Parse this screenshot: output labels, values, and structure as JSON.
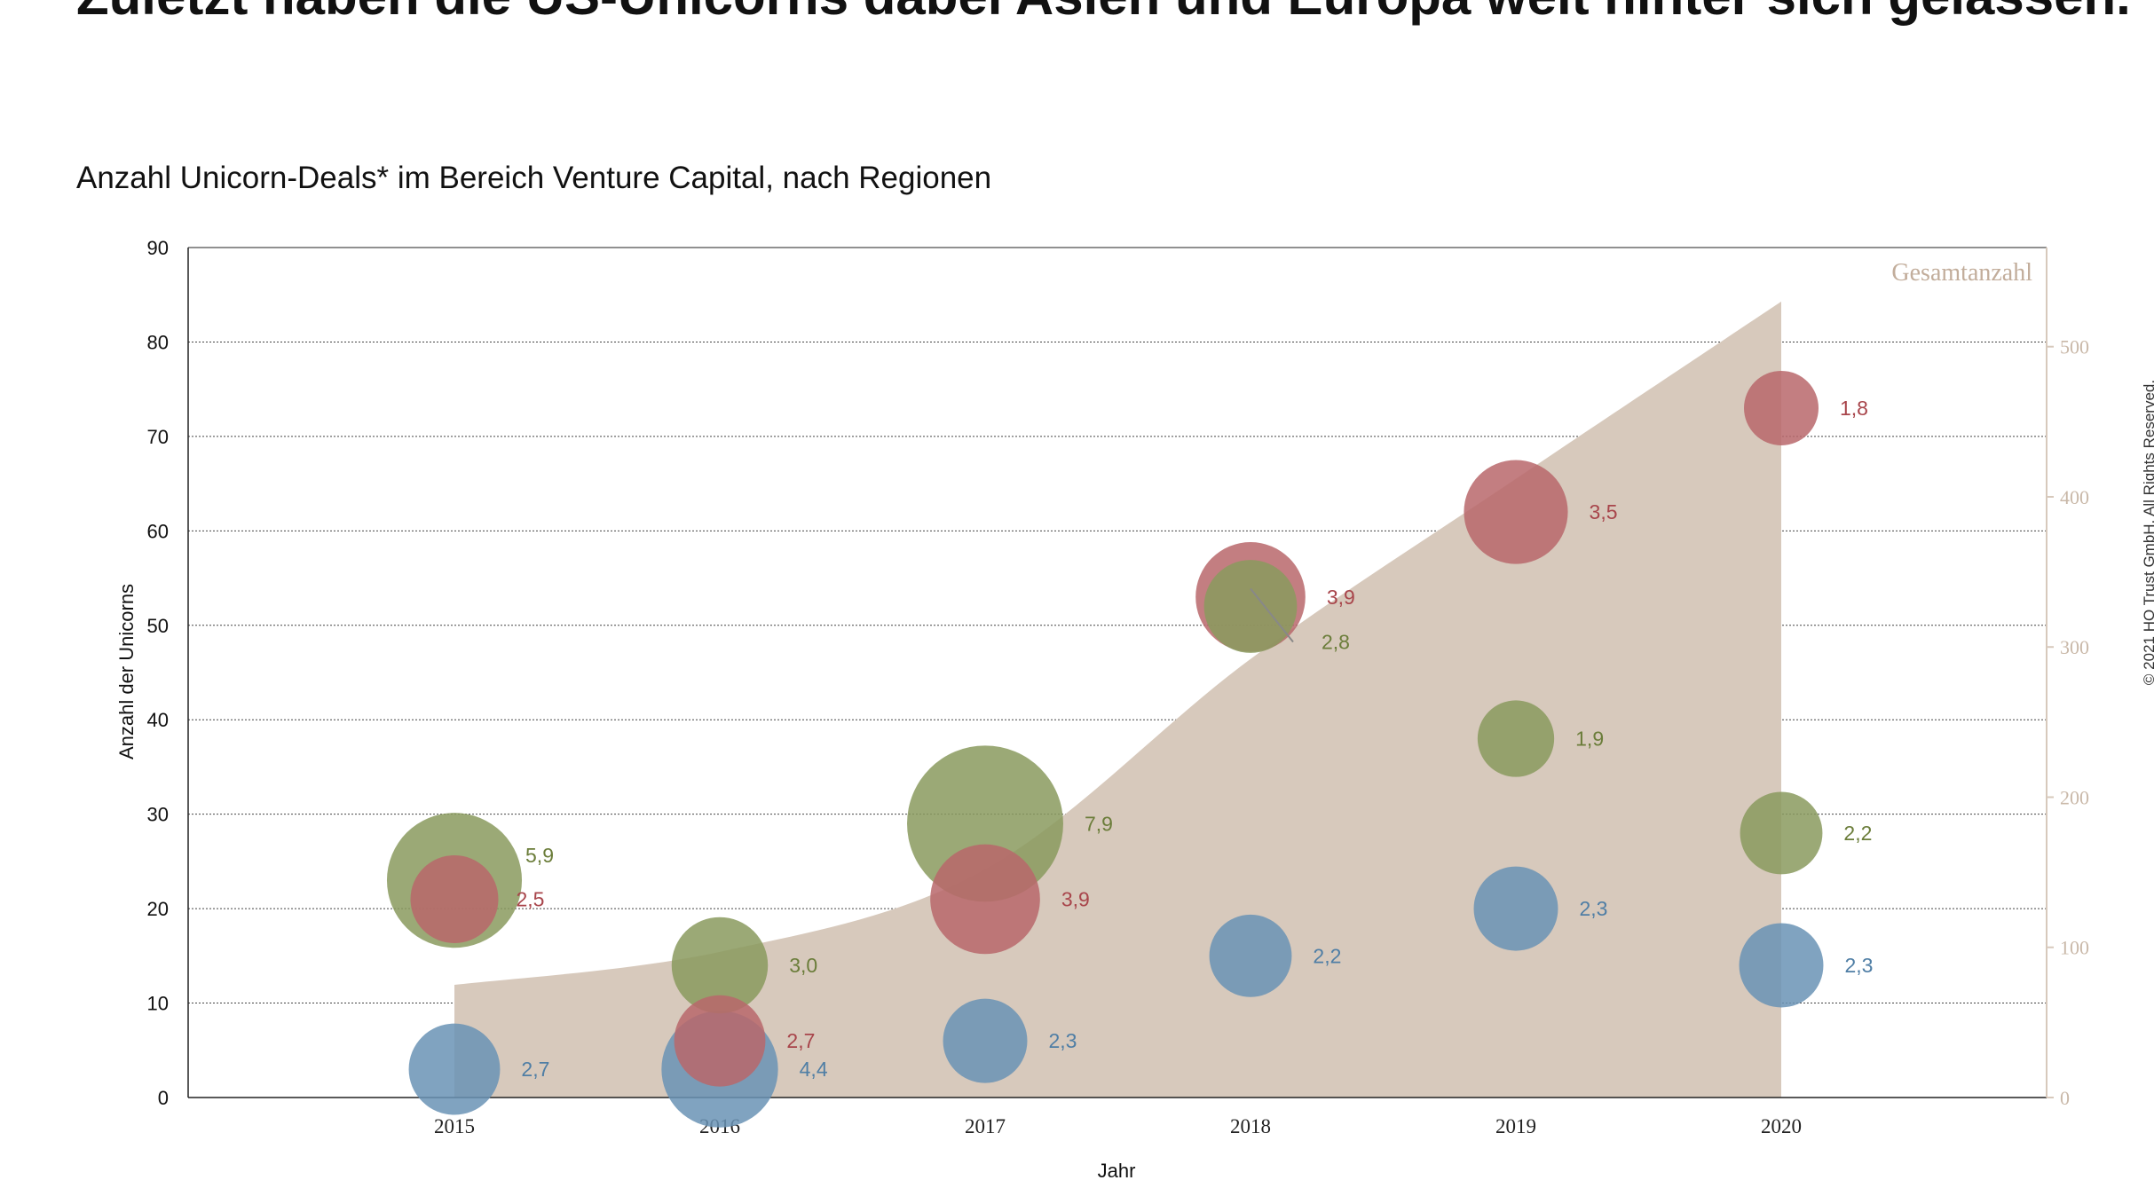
{
  "headline": "Zuletzt haben die US-Unicorns dabei Asien und Europa weit hinter sich gelassen.",
  "copyright": "© 2021 HQ Trust GmbH. All Rights Reserved.",
  "chart_data": {
    "type": "bubble",
    "title": "Anzahl Unicorn-Deals* im Bereich Venture Capital, nach Regionen",
    "xlabel": "Jahr",
    "ylabel": "Anzahl der Unicorns",
    "ylim": [
      0,
      90
    ],
    "yticks": [
      0,
      10,
      20,
      30,
      40,
      50,
      60,
      70,
      80,
      90
    ],
    "y2lim": [
      0,
      566
    ],
    "y2ticks": [
      0,
      100,
      200,
      300,
      400,
      500
    ],
    "categories": [
      "2015",
      "2016",
      "2017",
      "2018",
      "2019",
      "2020"
    ],
    "grid": true,
    "colors": {
      "red": "#b9676b",
      "green": "#8a9a5e",
      "blue": "#6a93b5",
      "area": "#d7c9bc"
    },
    "area": {
      "name": "Gesamtanzahl",
      "values": [
        75,
        97,
        152,
        292,
        412,
        530
      ]
    },
    "series": [
      {
        "color_key": "green",
        "points": [
          {
            "x": "2015",
            "y": 23,
            "size": 5.9,
            "label": "5,9"
          },
          {
            "x": "2016",
            "y": 14,
            "size": 3.0,
            "label": "3,0"
          },
          {
            "x": "2017",
            "y": 29,
            "size": 7.9,
            "label": "7,9"
          },
          {
            "x": "2018",
            "y": 52,
            "size": 2.8,
            "label": "2,8"
          },
          {
            "x": "2019",
            "y": 38,
            "size": 1.9,
            "label": "1,9"
          },
          {
            "x": "2020",
            "y": 28,
            "size": 2.2,
            "label": "2,2"
          }
        ]
      },
      {
        "color_key": "red",
        "points": [
          {
            "x": "2015",
            "y": 21,
            "size": 2.5,
            "label": "2,5"
          },
          {
            "x": "2016",
            "y": 6,
            "size": 2.7,
            "label": "2,7"
          },
          {
            "x": "2017",
            "y": 21,
            "size": 3.9,
            "label": "3,9"
          },
          {
            "x": "2018",
            "y": 53,
            "size": 3.9,
            "label": "3,9"
          },
          {
            "x": "2019",
            "y": 62,
            "size": 3.5,
            "label": "3,5"
          },
          {
            "x": "2020",
            "y": 73,
            "size": 1.8,
            "label": "1,8"
          }
        ]
      },
      {
        "color_key": "blue",
        "points": [
          {
            "x": "2015",
            "y": 3,
            "size": 2.7,
            "label": "2,7"
          },
          {
            "x": "2016",
            "y": 3,
            "size": 4.4,
            "label": "4,4"
          },
          {
            "x": "2017",
            "y": 6,
            "size": 2.3,
            "label": "2,3"
          },
          {
            "x": "2018",
            "y": 15,
            "size": 2.2,
            "label": "2,2"
          },
          {
            "x": "2019",
            "y": 20,
            "size": 2.3,
            "label": "2,3"
          },
          {
            "x": "2020",
            "y": 14,
            "size": 2.3,
            "label": "2,3"
          }
        ]
      }
    ]
  }
}
